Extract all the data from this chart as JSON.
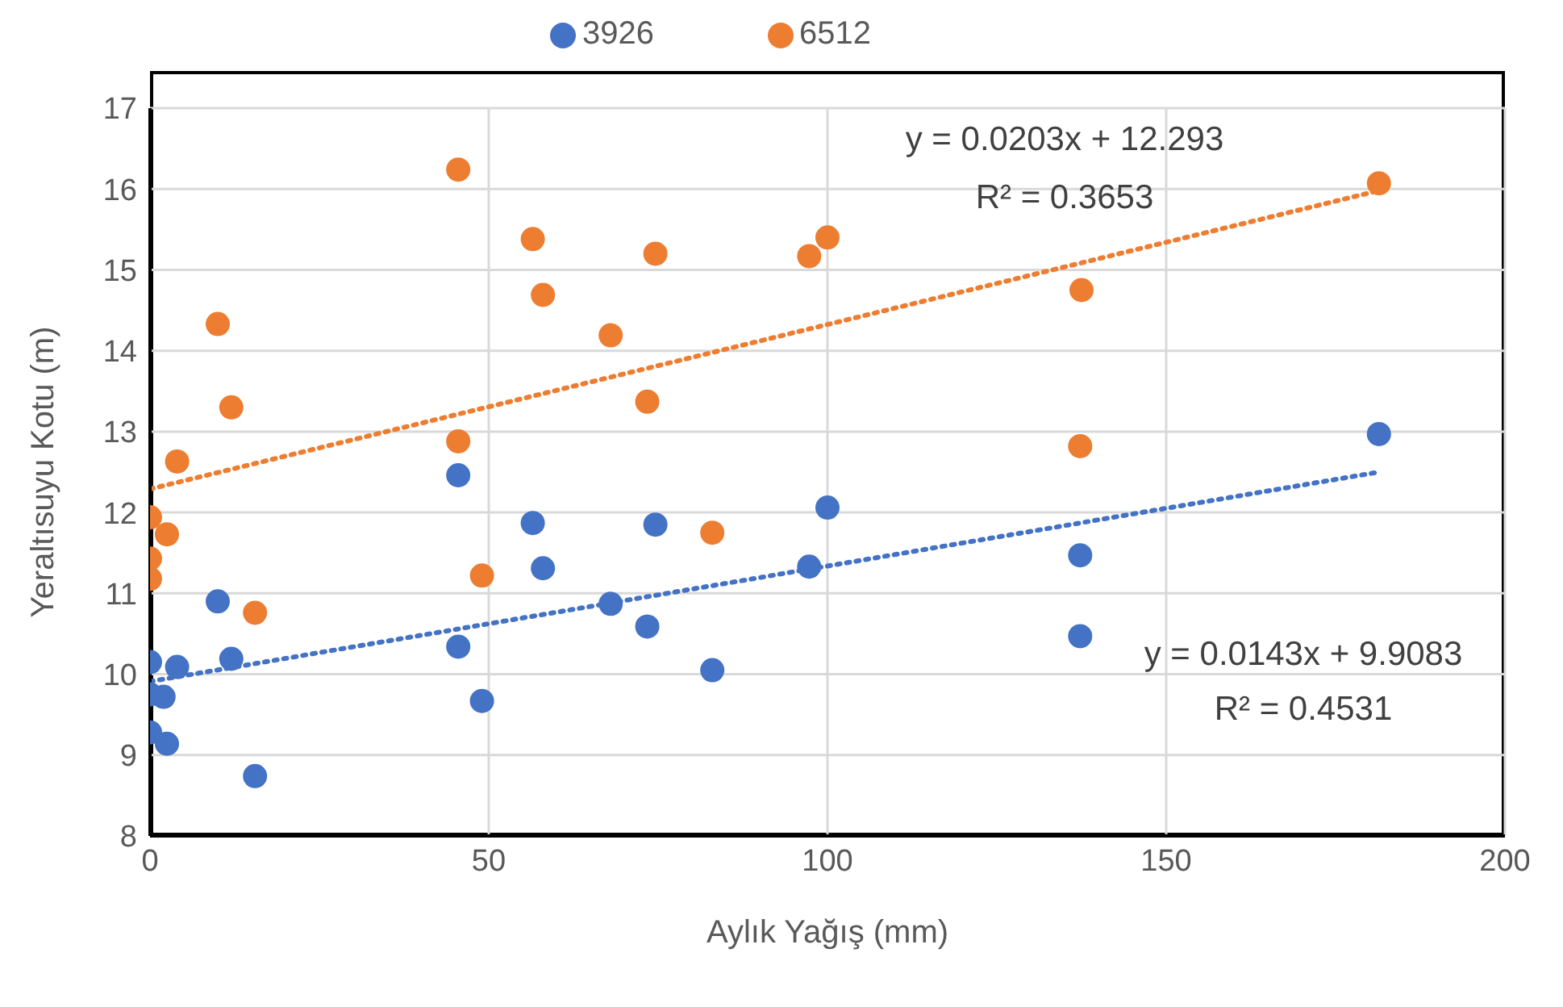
{
  "chart_data": {
    "type": "scatter",
    "xlabel": "Aylık Yağış (mm)",
    "ylabel": "Yeraltısuyu Kotu (m)",
    "xlim": [
      0,
      200
    ],
    "xticks": [
      0,
      50,
      100,
      150,
      200
    ],
    "ylim": [
      8,
      17
    ],
    "yticks": [
      8,
      9,
      10,
      11,
      12,
      13,
      14,
      15,
      16,
      17
    ],
    "grid": true,
    "legend": "top",
    "marker": "circle",
    "series": [
      {
        "name": "3926",
        "color": "#4472c4",
        "x": [
          0,
          0,
          0,
          2,
          2.5,
          4,
          10,
          12,
          15.5,
          45.5,
          45.5,
          49,
          56.5,
          58,
          68,
          73.4,
          74.6,
          83,
          97.3,
          100,
          137.3,
          137.3,
          181.4
        ],
        "values": [
          10.15,
          9.75,
          9.28,
          9.72,
          9.14,
          10.09,
          10.9,
          10.19,
          8.74,
          12.46,
          10.34,
          9.67,
          11.87,
          11.31,
          10.87,
          10.59,
          11.85,
          10.05,
          11.33,
          12.06,
          11.47,
          10.47,
          12.97
        ]
      },
      {
        "name": "6512",
        "color": "#ed7d31",
        "x": [
          0,
          2.5,
          0,
          0,
          4,
          10,
          12,
          15.5,
          45.5,
          45.5,
          49,
          56.5,
          58,
          68,
          74.6,
          73.4,
          83,
          97.3,
          100,
          137.5,
          137.3,
          181.4
        ],
        "values": [
          11.94,
          11.73,
          11.43,
          11.18,
          12.63,
          14.33,
          13.3,
          10.76,
          16.24,
          12.88,
          11.22,
          15.38,
          14.69,
          14.19,
          15.2,
          13.37,
          11.75,
          15.17,
          15.4,
          14.75,
          12.82,
          16.07
        ]
      },
      {
        "type": "line",
        "marker": "none",
        "color": "#4472c4",
        "line_style": "dotted",
        "x": [
          0,
          181.4
        ],
        "values": [
          9.91,
          12.5
        ]
      },
      {
        "type": "line",
        "marker": "none",
        "color": "#ed7d31",
        "line_style": "dotted",
        "x": [
          0,
          181.4
        ],
        "values": [
          12.29,
          15.98
        ]
      }
    ],
    "annotations": [
      "y = 0.0203x + 12.293",
      "R² = 0.3653",
      "y = 0.0143x + 9.9083",
      "R² = 0.4531"
    ]
  }
}
